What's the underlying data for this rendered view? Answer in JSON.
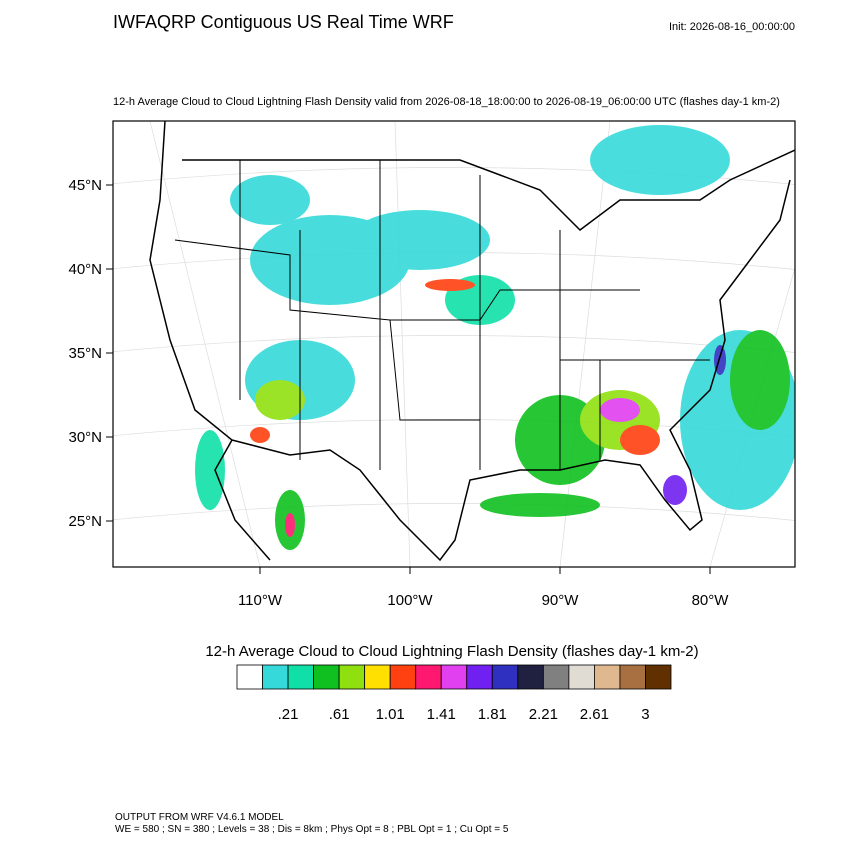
{
  "header": {
    "title": "IWFAQRP Contiguous US Real Time WRF",
    "init": "Init: 2026-08-16_00:00:00"
  },
  "map": {
    "subtitle": "12-h Average Cloud to Cloud Lightning Flash Density valid from 2026-08-18_18:00:00 to 2026-08-19_06:00:00 UTC   (flashes day-1 km-2)",
    "lat_labels": [
      "45°N",
      "40°N",
      "35°N",
      "30°N",
      "25°N"
    ],
    "lon_labels": [
      "110°W",
      "100°W",
      "90°W",
      "80°W"
    ]
  },
  "colorbar": {
    "title": "12-h Average Cloud to Cloud Lightning Flash Density  (flashes day-1 km-2)",
    "colors": [
      "#ffffff",
      "#36d9d9",
      "#10e0a8",
      "#10c020",
      "#90e010",
      "#ffe000",
      "#ff4010",
      "#ff1870",
      "#e040f0",
      "#7020f0",
      "#3030c0",
      "#202040",
      "#808080",
      "#e0dcd4",
      "#e0b890",
      "#a87040",
      "#603000"
    ],
    "labels": [
      ".21",
      ".61",
      "1.01",
      "1.41",
      "1.81",
      "2.21",
      "2.61",
      "3"
    ]
  },
  "footer": {
    "line1": "OUTPUT FROM WRF V4.6.1 MODEL",
    "line2": "WE = 580 ; SN = 380 ; Levels = 38 ; Dis = 8km ; Phys Opt = 8 ; PBL Opt = 1 ; Cu Opt = 5"
  }
}
